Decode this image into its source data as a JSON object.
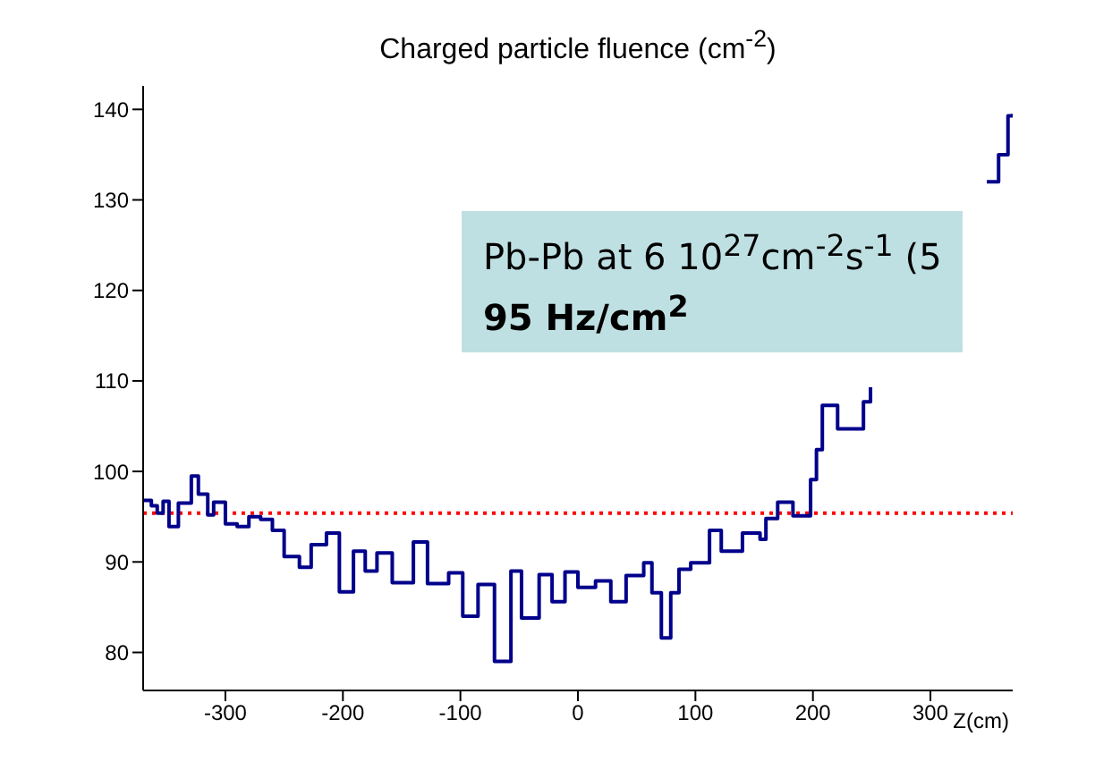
{
  "chart_data": {
    "type": "step",
    "title": "Charged particle fluence (cm$^{-2}$)",
    "xlabel": "Z(cm)",
    "annotations": [
      "Pb-Pb at 6 10$^{27}$cm$^{-2}$s$^{-1}$ (5",
      "95 Hz/cm$^{2}$"
    ],
    "x": [
      -370,
      -363,
      -358,
      -353,
      -348,
      -340,
      -329,
      -323,
      -315,
      -310,
      -300,
      -290,
      -280,
      -270,
      -260,
      -250,
      -237,
      -227,
      -214,
      -203,
      -191,
      -181,
      -171,
      -158,
      -140,
      -128,
      -110,
      -98,
      -85,
      -71,
      -57,
      -48,
      -33,
      -22,
      -11,
      0,
      15,
      28,
      41,
      56,
      63,
      71,
      79,
      86,
      96,
      112,
      122,
      140,
      155,
      160,
      170,
      183,
      198,
      203,
      208,
      221,
      234,
      243,
      249,
      255,
      345,
      348,
      358,
      366,
      370
    ],
    "series": [
      {
        "color": "#00008b",
        "values": [
          96.8,
          96.2,
          95.4,
          96.7,
          93.9,
          96.5,
          99.5,
          97.5,
          95.2,
          96.6,
          94.2,
          93.9,
          95,
          94.7,
          93.5,
          90.6,
          89.4,
          91.9,
          93.2,
          86.7,
          91.2,
          89,
          91,
          87.7,
          92.2,
          87.6,
          88.8,
          84,
          87.5,
          79,
          89,
          83.8,
          88.6,
          85.6,
          88.9,
          87.2,
          87.9,
          85.6,
          88.5,
          89.9,
          86.6,
          81.6,
          86.6,
          89.2,
          89.9,
          93.5,
          91.2,
          93.2,
          92.5,
          94.8,
          96.6,
          95.1,
          99.1,
          102.4,
          107.3,
          104.7,
          104.7,
          107.7,
          109.3,
          null,
          null,
          132,
          135,
          139.3,
          139.5
        ]
      }
    ],
    "xlim": [
      -370,
      370
    ],
    "xticks": [
      -300,
      -200,
      -100,
      0,
      100,
      200,
      300
    ],
    "ylim": [
      75.8,
      142.6
    ],
    "yticks": [
      80,
      90,
      100,
      110,
      120,
      130,
      140
    ],
    "ref_lines": [
      {
        "axis": "y",
        "value": 95.4,
        "color": "#ff0000",
        "line_style": "dotted"
      }
    ],
    "marker": "none"
  }
}
